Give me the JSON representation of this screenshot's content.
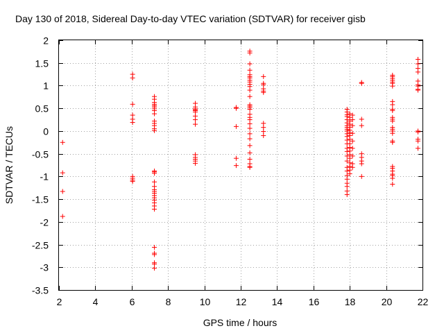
{
  "chart_data": {
    "type": "scatter",
    "title": "Day 130 of 2018, Sidereal Day-to-day VTEC variation (SDTVAR) for receiver gisb",
    "xlabel": "GPS time / hours",
    "ylabel": "SDTVAR / TECUs",
    "xlim": [
      2,
      22
    ],
    "ylim": [
      -3.5,
      2
    ],
    "xticks": [
      "2",
      "4",
      "6",
      "8",
      "10",
      "12",
      "14",
      "16",
      "18",
      "20",
      "22"
    ],
    "yticks": [
      "2",
      "1.5",
      "1",
      "0.5",
      "0",
      "-0.5",
      "-1",
      "-1.5",
      "-2",
      "-2.5",
      "-3",
      "-3.5"
    ],
    "grid": true,
    "marker": "+",
    "marker_color": "#ff0000",
    "series": [
      {
        "name": "SDTVAR",
        "points": [
          [
            2.2,
            -0.25
          ],
          [
            2.2,
            -0.92
          ],
          [
            2.2,
            -1.33
          ],
          [
            2.2,
            -1.88
          ],
          [
            6.05,
            1.25
          ],
          [
            6.05,
            1.17
          ],
          [
            6.05,
            0.59
          ],
          [
            6.05,
            0.35
          ],
          [
            6.05,
            0.26
          ],
          [
            6.05,
            0.19
          ],
          [
            6.05,
            -1.0
          ],
          [
            6.05,
            -1.04
          ],
          [
            6.05,
            -1.08
          ],
          [
            6.05,
            -1.11
          ],
          [
            7.25,
            0.76
          ],
          [
            7.25,
            0.7
          ],
          [
            7.25,
            0.63
          ],
          [
            7.25,
            0.59
          ],
          [
            7.25,
            0.56
          ],
          [
            7.25,
            0.53
          ],
          [
            7.25,
            0.49
          ],
          [
            7.25,
            0.45
          ],
          [
            7.25,
            0.38
          ],
          [
            7.25,
            0.22
          ],
          [
            7.25,
            0.17
          ],
          [
            7.25,
            0.12
          ],
          [
            7.25,
            0.05
          ],
          [
            7.25,
            0.01
          ],
          [
            7.25,
            -0.88
          ],
          [
            7.25,
            -0.9
          ],
          [
            7.25,
            -0.93
          ],
          [
            7.25,
            -1.12
          ],
          [
            7.25,
            -1.22
          ],
          [
            7.25,
            -1.29
          ],
          [
            7.25,
            -1.33
          ],
          [
            7.25,
            -1.37
          ],
          [
            7.25,
            -1.42
          ],
          [
            7.25,
            -1.47
          ],
          [
            7.25,
            -1.52
          ],
          [
            7.25,
            -1.58
          ],
          [
            7.25,
            -1.65
          ],
          [
            7.25,
            -1.72
          ],
          [
            7.25,
            -2.56
          ],
          [
            7.25,
            -2.69
          ],
          [
            7.25,
            -2.72
          ],
          [
            7.25,
            -2.9
          ],
          [
            7.25,
            -2.93
          ],
          [
            7.25,
            -3.02
          ],
          [
            9.5,
            0.61
          ],
          [
            9.5,
            0.53
          ],
          [
            9.5,
            0.49
          ],
          [
            9.5,
            0.47
          ],
          [
            9.5,
            0.45
          ],
          [
            9.5,
            0.42
          ],
          [
            9.5,
            0.33
          ],
          [
            9.5,
            0.25
          ],
          [
            9.5,
            0.15
          ],
          [
            9.5,
            -0.52
          ],
          [
            9.5,
            -0.58
          ],
          [
            9.5,
            -0.62
          ],
          [
            9.5,
            -0.66
          ],
          [
            9.5,
            -0.71
          ],
          [
            11.75,
            0.52
          ],
          [
            11.75,
            0.5
          ],
          [
            11.75,
            0.1
          ],
          [
            11.75,
            -0.6
          ],
          [
            11.75,
            -0.76
          ],
          [
            12.5,
            1.76
          ],
          [
            12.5,
            1.72
          ],
          [
            12.5,
            1.48
          ],
          [
            12.5,
            1.34
          ],
          [
            12.5,
            1.24
          ],
          [
            12.5,
            1.2
          ],
          [
            12.5,
            1.17
          ],
          [
            12.5,
            1.12
          ],
          [
            12.5,
            1.08
          ],
          [
            12.5,
            1.03
          ],
          [
            12.5,
            0.98
          ],
          [
            12.5,
            0.9
          ],
          [
            12.5,
            0.76
          ],
          [
            12.5,
            0.58
          ],
          [
            12.5,
            0.55
          ],
          [
            12.5,
            0.52
          ],
          [
            12.5,
            0.48
          ],
          [
            12.5,
            0.37
          ],
          [
            12.5,
            0.3
          ],
          [
            12.5,
            0.25
          ],
          [
            12.5,
            0.16
          ],
          [
            12.5,
            0.06
          ],
          [
            12.5,
            -0.06
          ],
          [
            12.5,
            -0.17
          ],
          [
            12.5,
            -0.32
          ],
          [
            12.5,
            -0.48
          ],
          [
            12.5,
            -0.62
          ],
          [
            12.5,
            -0.72
          ],
          [
            12.5,
            -0.78
          ],
          [
            12.5,
            -0.8
          ],
          [
            13.25,
            1.2
          ],
          [
            13.25,
            1.05
          ],
          [
            13.25,
            1.02
          ],
          [
            13.25,
            0.93
          ],
          [
            13.25,
            0.88
          ],
          [
            13.25,
            0.85
          ],
          [
            13.25,
            0.17
          ],
          [
            13.25,
            0.08
          ],
          [
            13.25,
            -0.01
          ],
          [
            13.25,
            -0.1
          ],
          [
            17.85,
            0.48
          ],
          [
            17.85,
            0.42
          ],
          [
            17.85,
            0.36
          ],
          [
            17.85,
            0.32
          ],
          [
            17.85,
            0.25
          ],
          [
            17.85,
            0.18
          ],
          [
            17.85,
            0.12
          ],
          [
            17.85,
            0.08
          ],
          [
            17.85,
            0.04
          ],
          [
            17.85,
            0.0
          ],
          [
            17.85,
            -0.06
          ],
          [
            17.85,
            -0.12
          ],
          [
            17.85,
            -0.2
          ],
          [
            17.85,
            -0.28
          ],
          [
            17.85,
            -0.38
          ],
          [
            17.85,
            -0.45
          ],
          [
            17.85,
            -0.55
          ],
          [
            17.85,
            -0.66
          ],
          [
            17.85,
            -0.8
          ],
          [
            17.85,
            -0.88
          ],
          [
            17.85,
            -0.98
          ],
          [
            17.85,
            -1.06
          ],
          [
            17.85,
            -1.15
          ],
          [
            17.85,
            -1.22
          ],
          [
            17.85,
            -1.32
          ],
          [
            17.85,
            -1.4
          ],
          [
            18.0,
            0.38
          ],
          [
            18.0,
            0.3
          ],
          [
            18.0,
            0.22
          ],
          [
            18.0,
            0.15
          ],
          [
            18.0,
            0.08
          ],
          [
            18.0,
            0.02
          ],
          [
            18.0,
            -0.04
          ],
          [
            18.0,
            -0.1
          ],
          [
            18.0,
            -0.18
          ],
          [
            18.0,
            -0.28
          ],
          [
            18.0,
            -0.36
          ],
          [
            18.0,
            -0.44
          ],
          [
            18.0,
            -0.52
          ],
          [
            18.0,
            -0.6
          ],
          [
            18.0,
            -0.7
          ],
          [
            18.0,
            -0.78
          ],
          [
            18.0,
            -0.86
          ],
          [
            18.0,
            -0.94
          ],
          [
            18.15,
            0.35
          ],
          [
            18.15,
            0.25
          ],
          [
            18.15,
            0.12
          ],
          [
            18.15,
            -0.05
          ],
          [
            18.15,
            -0.22
          ],
          [
            18.15,
            -0.38
          ],
          [
            18.15,
            -0.55
          ],
          [
            18.15,
            -0.72
          ],
          [
            18.15,
            -0.8
          ],
          [
            18.65,
            1.07
          ],
          [
            18.65,
            1.05
          ],
          [
            18.65,
            0.26
          ],
          [
            18.65,
            0.12
          ],
          [
            18.65,
            -0.5
          ],
          [
            18.65,
            -0.58
          ],
          [
            18.65,
            -0.66
          ],
          [
            18.65,
            -0.72
          ],
          [
            18.65,
            -1.0
          ],
          [
            20.35,
            1.23
          ],
          [
            20.35,
            1.2
          ],
          [
            20.35,
            1.16
          ],
          [
            20.35,
            1.12
          ],
          [
            20.35,
            1.08
          ],
          [
            20.35,
            1.05
          ],
          [
            20.35,
            0.99
          ],
          [
            20.35,
            0.65
          ],
          [
            20.35,
            0.58
          ],
          [
            20.35,
            0.48
          ],
          [
            20.35,
            0.45
          ],
          [
            20.35,
            0.3
          ],
          [
            20.35,
            0.26
          ],
          [
            20.35,
            0.22
          ],
          [
            20.35,
            0.08
          ],
          [
            20.35,
            0.04
          ],
          [
            20.35,
            0.0
          ],
          [
            20.35,
            -0.05
          ],
          [
            20.35,
            -0.22
          ],
          [
            20.35,
            -0.25
          ],
          [
            20.35,
            -0.78
          ],
          [
            20.35,
            -0.82
          ],
          [
            20.35,
            -0.88
          ],
          [
            20.35,
            -0.95
          ],
          [
            20.35,
            -0.98
          ],
          [
            20.35,
            -1.04
          ],
          [
            20.35,
            -1.17
          ],
          [
            21.75,
            1.58
          ],
          [
            21.75,
            1.48
          ],
          [
            21.75,
            1.38
          ],
          [
            21.75,
            1.3
          ],
          [
            21.75,
            1.1
          ],
          [
            21.75,
            1.02
          ],
          [
            21.75,
            0.99
          ],
          [
            21.75,
            0.92
          ],
          [
            21.75,
            0.9
          ],
          [
            21.75,
            0.0
          ],
          [
            21.75,
            -0.02
          ],
          [
            21.75,
            -0.18
          ],
          [
            21.75,
            -0.22
          ],
          [
            21.75,
            -0.38
          ]
        ]
      }
    ]
  }
}
